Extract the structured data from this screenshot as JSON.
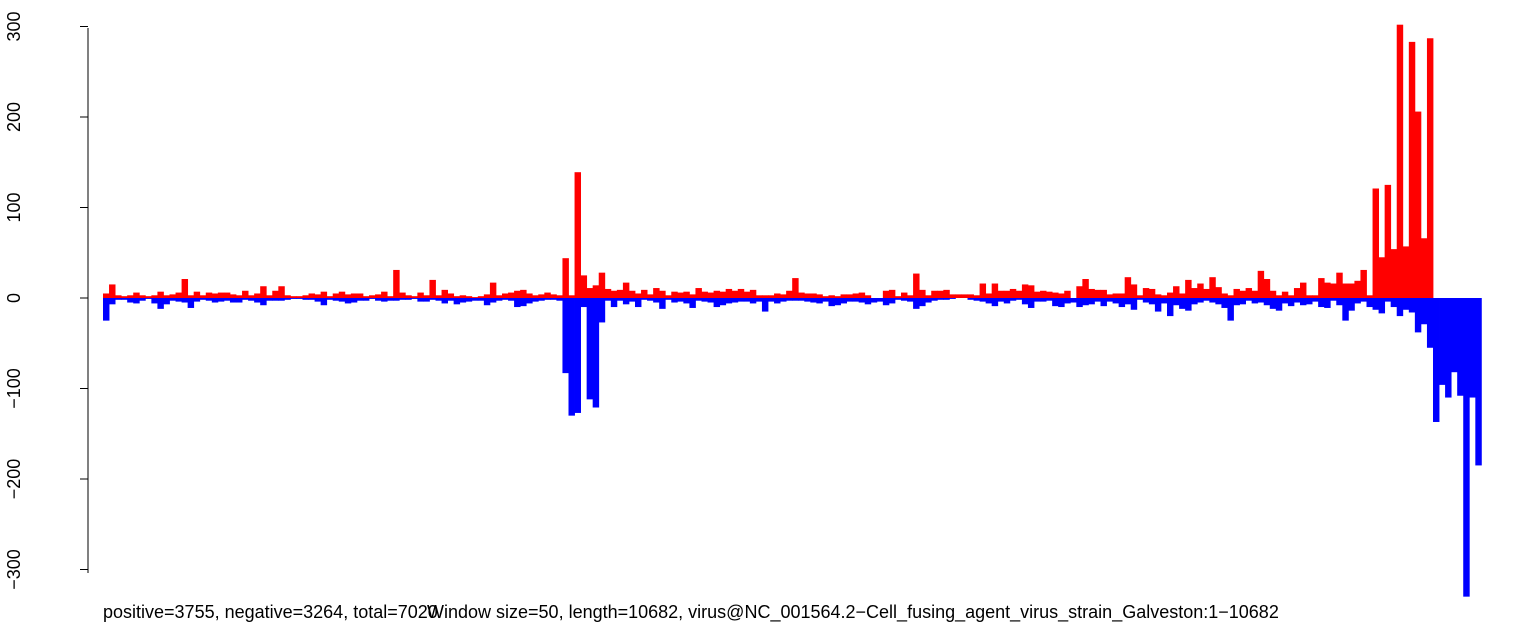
{
  "chart_data": {
    "type": "bar",
    "colors": {
      "positive": "#ff0000",
      "negative": "#0000ff"
    },
    "ylim": [
      -330,
      305
    ],
    "yticks": [
      -300,
      -200,
      -100,
      0,
      100,
      200,
      300
    ],
    "ytick_labels": [
      "−300",
      "−200",
      "−100",
      "0",
      "100",
      "200",
      "300"
    ],
    "caption_left": "positive=3755, negative=3264, total=7020",
    "caption_right": "Window size=50, length=10682, virus@NC_001564.2−Cell_fusing_agent_virus_strain_Galveston:1−10682",
    "series": [
      {
        "name": "positive",
        "values": [
          5,
          15,
          3,
          2,
          3,
          6,
          3,
          2,
          3,
          7,
          3,
          4,
          6,
          21,
          3,
          7,
          3,
          6,
          5,
          6,
          6,
          4,
          3,
          8,
          3,
          5,
          13,
          3,
          8,
          13,
          3,
          2,
          2,
          3,
          5,
          4,
          7,
          2,
          5,
          7,
          4,
          5,
          5,
          2,
          3,
          4,
          7,
          2,
          31,
          6,
          3,
          2,
          6,
          3,
          20,
          3,
          9,
          5,
          2,
          3,
          2,
          1,
          2,
          4,
          17,
          3,
          5,
          6,
          8,
          9,
          5,
          3,
          4,
          6,
          4,
          3,
          44,
          3,
          139,
          25,
          11,
          14,
          28,
          10,
          8,
          9,
          17,
          8,
          5,
          9,
          4,
          11,
          8,
          3,
          7,
          6,
          7,
          4,
          11,
          7,
          6,
          8,
          7,
          10,
          8,
          10,
          7,
          9,
          3,
          3,
          3,
          5,
          4,
          8,
          22,
          6,
          5,
          5,
          4,
          2,
          3,
          2,
          4,
          4,
          5,
          6,
          3,
          0,
          0,
          8,
          9,
          2,
          6,
          3,
          27,
          9,
          3,
          8,
          8,
          9,
          4,
          4,
          4,
          4,
          3,
          16,
          5,
          16,
          8,
          8,
          10,
          8,
          15,
          14,
          7,
          8,
          7,
          6,
          5,
          8,
          0,
          13,
          21,
          10,
          9,
          9,
          4,
          5,
          5,
          23,
          15,
          3,
          11,
          10,
          4,
          3,
          6,
          13,
          5,
          20,
          11,
          16,
          10,
          23,
          12,
          5,
          3,
          10,
          8,
          11,
          8,
          30,
          21,
          8,
          3,
          7,
          3,
          11,
          17,
          3,
          3,
          22,
          17,
          16,
          28,
          16,
          16,
          19,
          31,
          3,
          121,
          45,
          125,
          54,
          302,
          57,
          283,
          206,
          66,
          287
        ]
      },
      {
        "name": "negative",
        "values": [
          -25,
          -7,
          -2,
          -2,
          -5,
          -6,
          -3,
          -1,
          -6,
          -12,
          -7,
          -3,
          -4,
          -5,
          -11,
          -4,
          -2,
          -3,
          -5,
          -4,
          -3,
          -5,
          -5,
          -2,
          -3,
          -5,
          -8,
          -3,
          -3,
          -3,
          -2,
          -1,
          -1,
          -2,
          -2,
          -4,
          -8,
          -2,
          -3,
          -4,
          -6,
          -5,
          -3,
          -3,
          -1,
          -3,
          -4,
          -3,
          -3,
          -2,
          -2,
          -1,
          -4,
          -4,
          -2,
          -3,
          -6,
          -3,
          -7,
          -5,
          -4,
          -3,
          -3,
          -8,
          -5,
          -3,
          -2,
          -3,
          -10,
          -9,
          -6,
          -4,
          -3,
          -2,
          -2,
          -3,
          -83,
          -130,
          -127,
          -10,
          -112,
          -121,
          -27,
          -3,
          -10,
          -3,
          -7,
          -4,
          -10,
          -2,
          -3,
          -5,
          -12,
          -2,
          -5,
          -4,
          -6,
          -11,
          -3,
          -4,
          -5,
          -10,
          -8,
          -6,
          -5,
          -4,
          -4,
          -6,
          -4,
          -15,
          -4,
          -6,
          -4,
          -3,
          -3,
          -3,
          -4,
          -5,
          -6,
          -4,
          -9,
          -8,
          -6,
          -4,
          -4,
          -5,
          -7,
          -5,
          -4,
          -8,
          -6,
          -2,
          -3,
          -4,
          -12,
          -9,
          -5,
          -3,
          -2,
          -2,
          -1,
          0,
          0,
          -2,
          -3,
          -4,
          -6,
          -9,
          -4,
          -6,
          -3,
          -2,
          -7,
          -11,
          -4,
          -4,
          -3,
          -9,
          -10,
          -6,
          -5,
          -10,
          -8,
          -7,
          -4,
          -9,
          -4,
          -6,
          -10,
          -7,
          -13,
          -2,
          -5,
          -7,
          -15,
          -6,
          -20,
          -8,
          -12,
          -14,
          -7,
          -5,
          -3,
          -5,
          -7,
          -11,
          -25,
          -8,
          -7,
          -3,
          -6,
          -5,
          -8,
          -12,
          -14,
          -6,
          -9,
          -5,
          -8,
          -7,
          -4,
          -10,
          -11,
          -3,
          -8,
          -25,
          -14,
          -6,
          -4,
          -10,
          -13,
          -17,
          -4,
          -10,
          -20,
          -13,
          -16,
          -38,
          -29,
          -55,
          -137,
          -96,
          -110,
          -82,
          -108,
          -330,
          -110,
          -185
        ]
      }
    ]
  }
}
